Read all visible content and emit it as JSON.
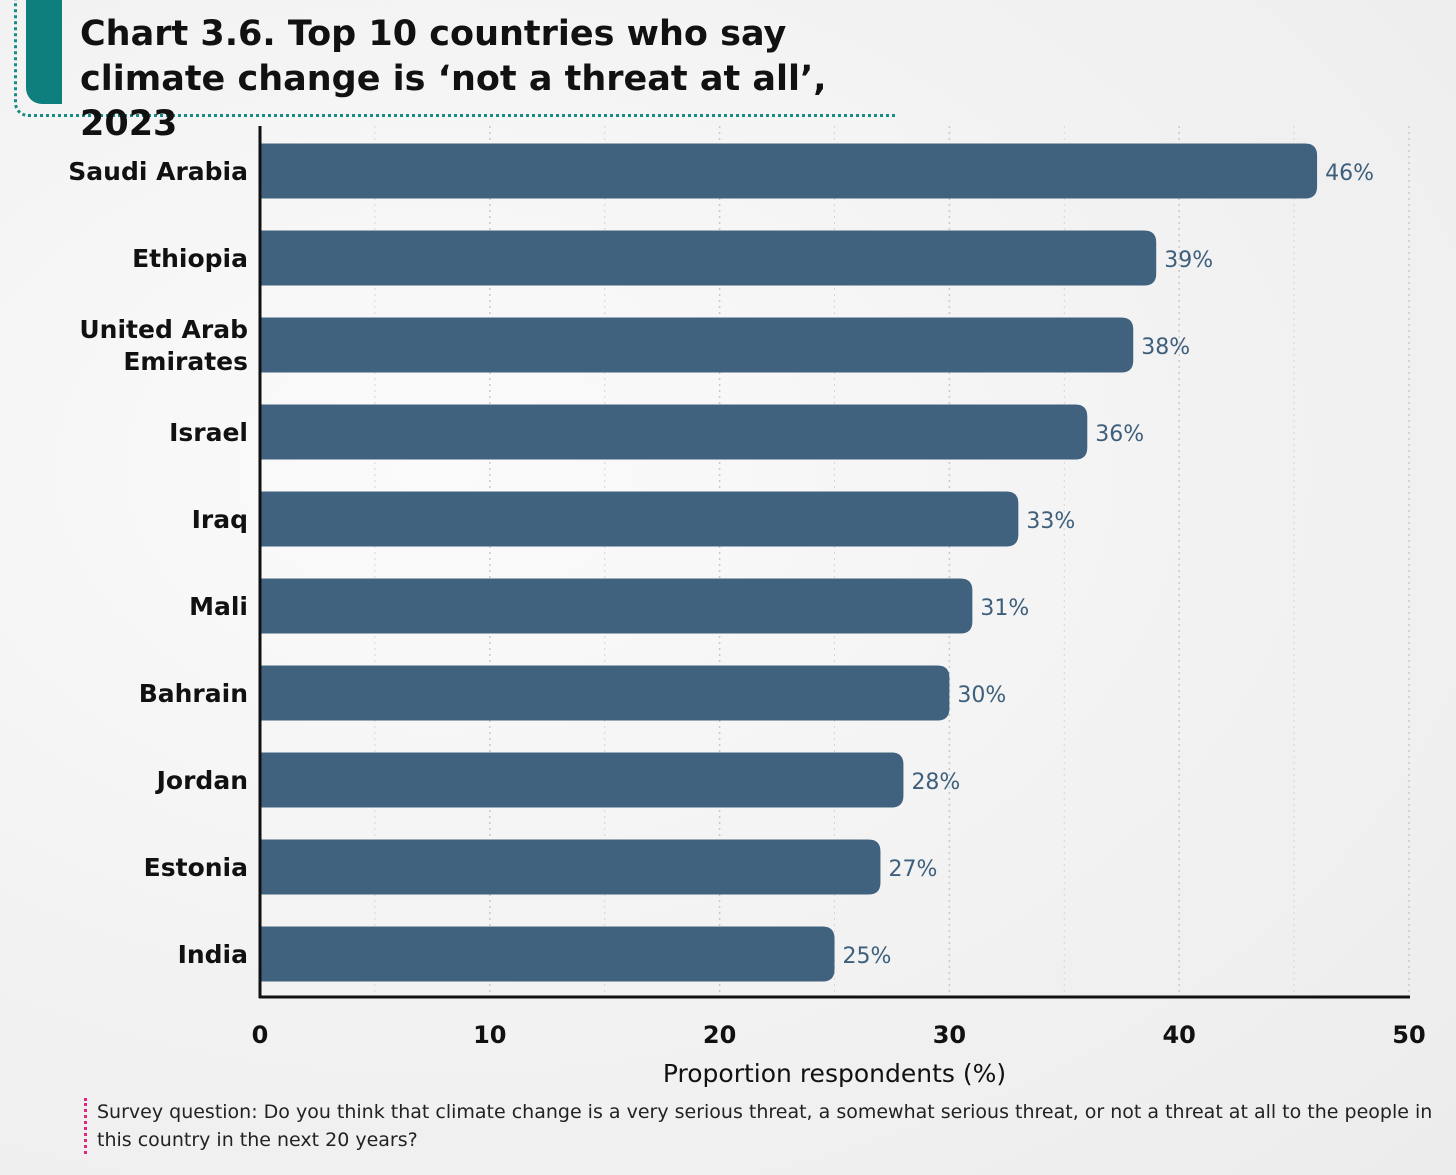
{
  "title": "Chart 3.6. Top 10 countries who say climate change is ‘not a threat at all’, 2023",
  "footnote": "Survey question: Do you think that climate change is a very serious threat, a somewhat serious threat, or not a threat at all to the people in this country in the next 20 years?",
  "colors": {
    "bar": "#40627e",
    "accent": "#0e7f7c",
    "footnote_accent": "#e6237e"
  },
  "chart_data": {
    "type": "bar",
    "orientation": "horizontal",
    "title": "Chart 3.6. Top 10 countries who say climate change is ‘not a threat at all’, 2023",
    "categories": [
      [
        "Saudi Arabia"
      ],
      [
        "Ethiopia"
      ],
      [
        "United Arab",
        "Emirates"
      ],
      [
        "Israel"
      ],
      [
        "Iraq"
      ],
      [
        "Mali"
      ],
      [
        "Bahrain"
      ],
      [
        "Jordan"
      ],
      [
        "Estonia"
      ],
      [
        "India"
      ]
    ],
    "values": [
      46,
      39,
      38,
      36,
      33,
      31,
      30,
      28,
      27,
      25
    ],
    "value_labels": [
      "46%",
      "39%",
      "38%",
      "36%",
      "33%",
      "31%",
      "30%",
      "28%",
      "27%",
      "25%"
    ],
    "xlabel": "Proportion respondents (%)",
    "ylabel": "",
    "xlim": [
      0,
      50
    ],
    "xticks": [
      0,
      10,
      20,
      30,
      40,
      50
    ],
    "grid": "vertical dotted",
    "legend": "none"
  }
}
